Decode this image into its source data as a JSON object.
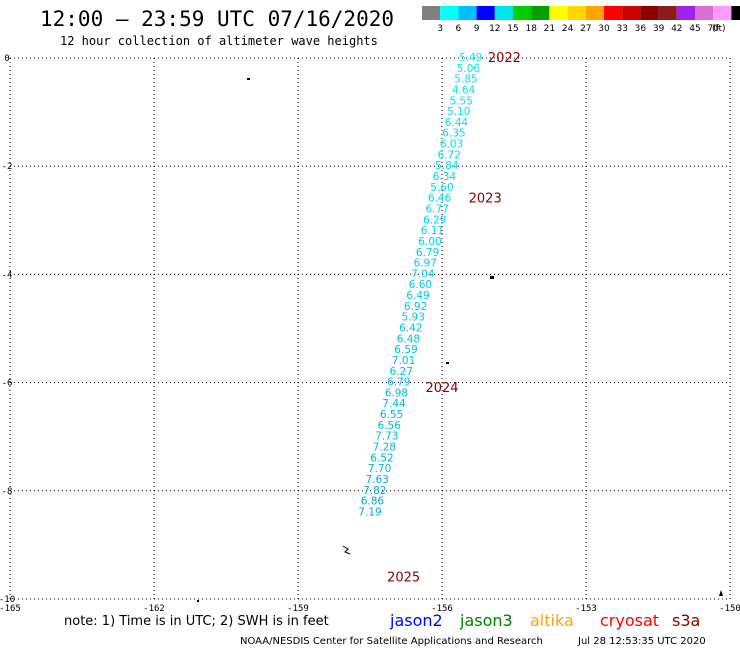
{
  "header": {
    "title": "12:00 – 23:59 UTC 07/16/2020",
    "subtitle": "12 hour collection of altimeter wave heights"
  },
  "legend": {
    "colors": [
      "#808080",
      "#00ffff",
      "#00bfff",
      "#0000ff",
      "#00e5ee",
      "#00cd00",
      "#00a000",
      "#ffff00",
      "#ffd700",
      "#ffa500",
      "#ff0000",
      "#cd0000",
      "#8b0000",
      "#8b1a1a",
      "#a020f0",
      "#da70d6",
      "#ff99ff",
      "#000000"
    ],
    "labels": [
      "3",
      "6",
      "9",
      "12",
      "15",
      "18",
      "21",
      "24",
      "27",
      "30",
      "33",
      "36",
      "39",
      "42",
      "45",
      "70"
    ],
    "unit": "(ft)"
  },
  "chart_data": {
    "type": "scatter",
    "xlim": [
      -165,
      -150
    ],
    "ylim": [
      -10,
      0
    ],
    "x_ticks": [
      -165,
      -162,
      -159,
      -156,
      -153,
      -150
    ],
    "y_ticks": [
      0,
      -2,
      -4,
      -6,
      -8,
      -10
    ],
    "x_tick_labels": [
      "-165",
      "-162",
      "-159",
      "-156",
      "-153",
      "-150"
    ],
    "y_tick_labels": [
      "0",
      "-2",
      "-4",
      "-6",
      "-8",
      "-10"
    ],
    "grid": true,
    "track_points": [
      {
        "x": -155.4,
        "y": 0.0,
        "label": "5.49"
      },
      {
        "x": -155.45,
        "y": -0.2,
        "label": "5.06"
      },
      {
        "x": -155.5,
        "y": -0.4,
        "label": "5.85"
      },
      {
        "x": -155.55,
        "y": -0.6,
        "label": "4.64"
      },
      {
        "x": -155.6,
        "y": -0.8,
        "label": "5.55"
      },
      {
        "x": -155.65,
        "y": -1.0,
        "label": "5.10"
      },
      {
        "x": -155.7,
        "y": -1.2,
        "label": "6.44"
      },
      {
        "x": -155.75,
        "y": -1.4,
        "label": "6.35"
      },
      {
        "x": -155.8,
        "y": -1.6,
        "label": "6.03"
      },
      {
        "x": -155.85,
        "y": -1.8,
        "label": "6.72"
      },
      {
        "x": -155.9,
        "y": -2.0,
        "label": "5.84"
      },
      {
        "x": -155.95,
        "y": -2.2,
        "label": "6.34"
      },
      {
        "x": -156.0,
        "y": -2.4,
        "label": "5.60"
      },
      {
        "x": -156.05,
        "y": -2.6,
        "label": "6.46"
      },
      {
        "x": -156.1,
        "y": -2.8,
        "label": "6.77"
      },
      {
        "x": -156.15,
        "y": -3.0,
        "label": "6.29"
      },
      {
        "x": -156.2,
        "y": -3.2,
        "label": "6.11"
      },
      {
        "x": -156.25,
        "y": -3.4,
        "label": "6.00"
      },
      {
        "x": -156.3,
        "y": -3.6,
        "label": "6.79"
      },
      {
        "x": -156.35,
        "y": -3.8,
        "label": "6.97"
      },
      {
        "x": -156.4,
        "y": -4.0,
        "label": "7.04"
      },
      {
        "x": -156.45,
        "y": -4.2,
        "label": "6.60"
      },
      {
        "x": -156.5,
        "y": -4.4,
        "label": "6.49"
      },
      {
        "x": -156.55,
        "y": -4.6,
        "label": "6.92"
      },
      {
        "x": -156.6,
        "y": -4.8,
        "label": "5.93"
      },
      {
        "x": -156.65,
        "y": -5.0,
        "label": "6.42"
      },
      {
        "x": -156.7,
        "y": -5.2,
        "label": "6.48"
      },
      {
        "x": -156.75,
        "y": -5.4,
        "label": "6.59"
      },
      {
        "x": -156.8,
        "y": -5.6,
        "label": "7.01"
      },
      {
        "x": -156.85,
        "y": -5.8,
        "label": "6.27"
      },
      {
        "x": -156.9,
        "y": -6.0,
        "label": "6.79"
      },
      {
        "x": -156.95,
        "y": -6.2,
        "label": "6.98"
      },
      {
        "x": -157.0,
        "y": -6.4,
        "label": "7.44"
      },
      {
        "x": -157.05,
        "y": -6.6,
        "label": "6.55"
      },
      {
        "x": -157.1,
        "y": -6.8,
        "label": "6.56"
      },
      {
        "x": -157.15,
        "y": -7.0,
        "label": "7.73"
      },
      {
        "x": -157.2,
        "y": -7.2,
        "label": "7.28"
      },
      {
        "x": -157.25,
        "y": -7.4,
        "label": "6.52"
      },
      {
        "x": -157.3,
        "y": -7.6,
        "label": "7.70"
      },
      {
        "x": -157.35,
        "y": -7.8,
        "label": "7.63"
      },
      {
        "x": -157.4,
        "y": -8.0,
        "label": "7.82"
      },
      {
        "x": -157.45,
        "y": -8.2,
        "label": "6.86"
      },
      {
        "x": -157.5,
        "y": -8.4,
        "label": "7.19"
      }
    ],
    "year_labels": [
      {
        "text": "2022",
        "x": -154.7,
        "y": 0.0
      },
      {
        "text": "2023",
        "x": -155.1,
        "y": -2.6
      },
      {
        "text": "2024",
        "x": -156.0,
        "y": -6.1
      },
      {
        "text": "2025",
        "x": -156.8,
        "y": -9.6
      }
    ]
  },
  "footer": {
    "note": "note: 1) Time is in UTC; 2) SWH is in feet",
    "satellites": [
      {
        "name": "jason2",
        "color": "#0000ff"
      },
      {
        "name": "jason3",
        "color": "#008000"
      },
      {
        "name": "altika",
        "color": "#ffa500"
      },
      {
        "name": "cryosat",
        "color": "#ff0000"
      },
      {
        "name": "s3a",
        "color": "#8b0000"
      }
    ],
    "credit": "NOAA/NESDIS Center for Satellite Applications and Research",
    "timestamp": "Jul 28 12:53:35 UTC 2020"
  }
}
